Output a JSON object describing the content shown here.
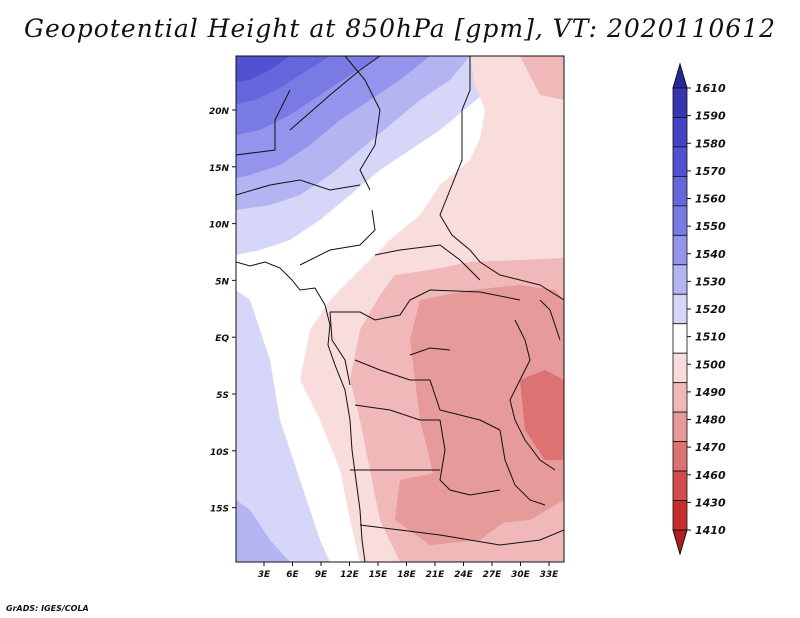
{
  "title": "Geopotential Height at 850hPa [gpm], VT: 2020110612",
  "credit": "GrADS: IGES/COLA",
  "map": {
    "lat_labels": [
      "20N",
      "15N",
      "10N",
      "5N",
      "EQ",
      "5S",
      "10S",
      "15S"
    ],
    "lon_labels": [
      "3E",
      "6E",
      "9E",
      "12E",
      "15E",
      "18E",
      "21E",
      "24E",
      "27E",
      "30E",
      "33E"
    ]
  },
  "colorbar": {
    "levels": [
      "1610",
      "1590",
      "1580",
      "1570",
      "1560",
      "1550",
      "1540",
      "1530",
      "1520",
      "1510",
      "1500",
      "1490",
      "1480",
      "1470",
      "1460",
      "1430",
      "1410"
    ],
    "colors": [
      "#27279a",
      "#3636b0",
      "#4343c4",
      "#5252d0",
      "#6565dc",
      "#7a7ae4",
      "#9494ec",
      "#b4b4f2",
      "#d6d6f8",
      "#ffffff",
      "#f9dcdc",
      "#f0b8b8",
      "#e69a9a",
      "#dc7272",
      "#d24a4a",
      "#c42e2e",
      "#b31d1d"
    ]
  }
}
